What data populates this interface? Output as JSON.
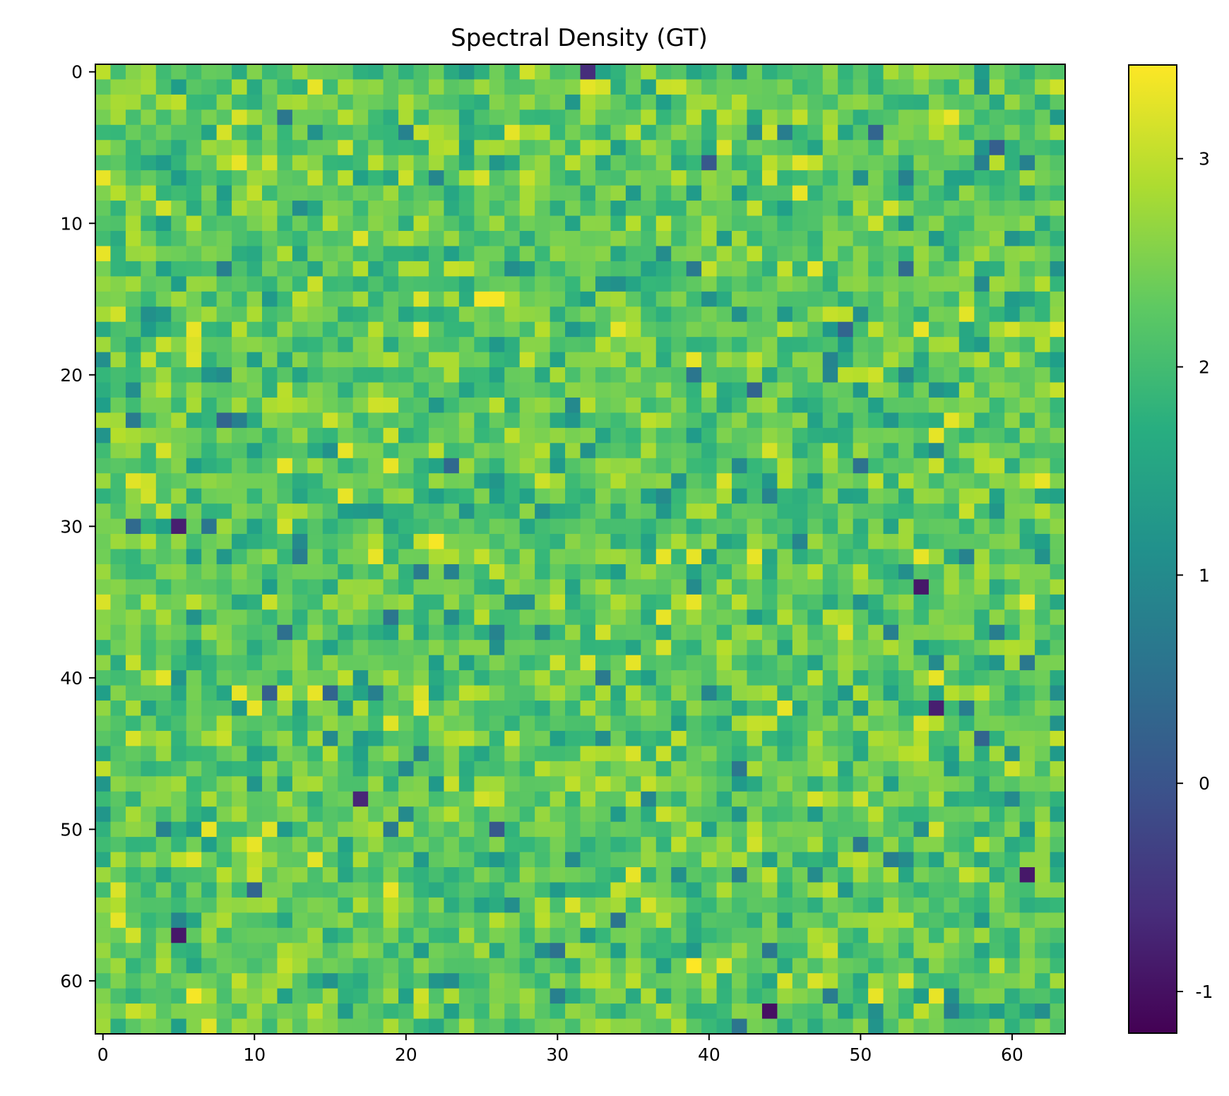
{
  "chart_data": {
    "type": "heatmap",
    "title": "Spectral Density (GT)",
    "xlabel": "",
    "ylabel": "",
    "rows": 64,
    "cols": 64,
    "xlim": [
      -0.5,
      63.5
    ],
    "ylim": [
      63.5,
      -0.5
    ],
    "x_ticks": [
      0,
      10,
      20,
      30,
      40,
      50,
      60
    ],
    "y_ticks": [
      0,
      10,
      20,
      30,
      40,
      50,
      60
    ],
    "colormap": "viridis",
    "colorbar": {
      "vmin": -1.2,
      "vmax": 3.45,
      "ticks": [
        -1,
        0,
        1,
        2,
        3
      ]
    },
    "value_summary": {
      "typical_range": [
        1.5,
        3.0
      ],
      "median_approx": 2.3
    },
    "notable_cells": [
      {
        "row": 0,
        "col": 32,
        "value": -0.6
      },
      {
        "row": 5,
        "col": 59,
        "value": 0.2
      },
      {
        "row": 6,
        "col": 40,
        "value": 0.1
      },
      {
        "row": 13,
        "col": 53,
        "value": 0.4
      },
      {
        "row": 15,
        "col": 25,
        "value": 3.4
      },
      {
        "row": 15,
        "col": 26,
        "value": 3.4
      },
      {
        "row": 23,
        "col": 8,
        "value": 0.3
      },
      {
        "row": 30,
        "col": 5,
        "value": -0.8
      },
      {
        "row": 31,
        "col": 22,
        "value": 3.4
      },
      {
        "row": 34,
        "col": 54,
        "value": -0.9
      },
      {
        "row": 41,
        "col": 11,
        "value": 0.2
      },
      {
        "row": 41,
        "col": 15,
        "value": 0.3
      },
      {
        "row": 42,
        "col": 55,
        "value": -0.8
      },
      {
        "row": 44,
        "col": 58,
        "value": 0.3
      },
      {
        "row": 48,
        "col": 17,
        "value": -0.7
      },
      {
        "row": 50,
        "col": 26,
        "value": 0.1
      },
      {
        "row": 53,
        "col": 61,
        "value": -0.9
      },
      {
        "row": 57,
        "col": 5,
        "value": -0.9
      },
      {
        "row": 59,
        "col": 39,
        "value": 3.45
      },
      {
        "row": 61,
        "col": 6,
        "value": 3.4
      },
      {
        "row": 62,
        "col": 44,
        "value": -1.0
      },
      {
        "row": 63,
        "col": 42,
        "value": 0.6
      }
    ],
    "colorbar_tick_labels": [
      "-1",
      "0",
      "1",
      "2",
      "3"
    ],
    "x_tick_labels": [
      "0",
      "10",
      "20",
      "30",
      "40",
      "50",
      "60"
    ],
    "y_tick_labels": [
      "0",
      "10",
      "20",
      "30",
      "40",
      "50",
      "60"
    ]
  }
}
